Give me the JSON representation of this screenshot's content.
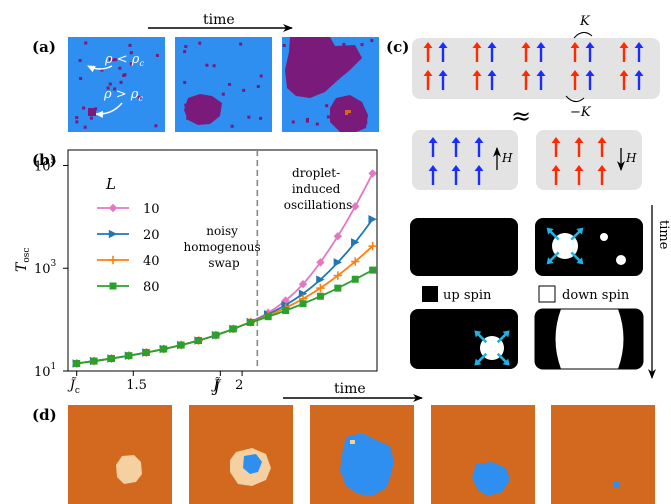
{
  "panel_labels": {
    "a": "(a)",
    "b": "(b)",
    "c": "(c)",
    "d": "(d)"
  },
  "panel_a": {
    "time_label": "time",
    "label_low": "ρ < ρ",
    "label_low_sub": "c",
    "label_high": "ρ > ρ",
    "label_high_sub": "c",
    "colors": {
      "background": "#2f8ff0",
      "cluster": "#7a1a7a",
      "speck": "#d2691e"
    }
  },
  "panel_c": {
    "label_K": "K",
    "label_negK": "−K",
    "approx": "≈",
    "label_H": "H",
    "legend_up": "up spin",
    "legend_down": "down spin",
    "time_label": "time",
    "colors": {
      "red_arrow": "#ff2a00",
      "blue_arrow": "#1a2cff",
      "box_bg": "#e3e3e3",
      "cyan_arrow": "#1fb3e3"
    }
  },
  "panel_d": {
    "time_label": "time",
    "colors": {
      "orange": "#d2691e",
      "tan": "#f5d0a0",
      "blue": "#2f8ff0"
    }
  },
  "chart_data": {
    "type": "line",
    "ylabel": "T",
    "ylabel_sub": "osc",
    "xlabel": "J̃",
    "yscale": "log",
    "xlim": [
      1.2,
      2.62
    ],
    "ylim": [
      10,
      200000
    ],
    "xtick_labels": [
      {
        "x": 1.24,
        "main": "J̃",
        "sub": "c"
      },
      {
        "x": 1.5,
        "main": "1.5",
        "sub": ""
      },
      {
        "x": 1.9,
        "main": "J̃",
        "sub": ""
      },
      {
        "x": 2.0,
        "main": "2",
        "sub": ""
      }
    ],
    "ytick_labels": [
      {
        "y": 10,
        "base": "10",
        "exp": "1"
      },
      {
        "y": 1000,
        "base": "10",
        "exp": "3"
      },
      {
        "y": 100000,
        "base": "10",
        "exp": "5"
      }
    ],
    "vline_x": 2.07,
    "legend_title": "L",
    "annotations": [
      {
        "lines": [
          "noisy",
          "homogenous",
          "swap"
        ]
      },
      {
        "lines": [
          "droplet-",
          "induced",
          "oscillations"
        ]
      }
    ],
    "series": [
      {
        "name": "10",
        "marker": "diamond",
        "color": "#e377c2",
        "x": [
          1.24,
          1.28,
          1.32,
          1.36,
          1.4,
          1.44,
          1.48,
          1.52,
          1.56,
          1.6,
          1.64,
          1.68,
          1.72,
          1.76,
          1.8,
          1.84,
          1.88,
          1.92,
          1.96,
          2.0,
          2.04,
          2.08,
          2.12,
          2.16,
          2.2,
          2.24,
          2.28,
          2.32,
          2.36,
          2.4,
          2.44,
          2.48,
          2.52,
          2.56,
          2.6
        ],
        "values": [
          14,
          14.8,
          15.6,
          16.5,
          17.5,
          18.6,
          19.9,
          21.3,
          22.9,
          24.7,
          26.8,
          29.2,
          32,
          35.3,
          39.2,
          44,
          49.8,
          57,
          66,
          77,
          91,
          110,
          136,
          175,
          235,
          330,
          490,
          780,
          1300,
          2300,
          4200,
          8000,
          16000,
          33000,
          70000
        ]
      },
      {
        "name": "20",
        "marker": "triangle",
        "color": "#1f77b4",
        "x": [
          1.24,
          1.28,
          1.32,
          1.36,
          1.4,
          1.44,
          1.48,
          1.52,
          1.56,
          1.6,
          1.64,
          1.68,
          1.72,
          1.76,
          1.8,
          1.84,
          1.88,
          1.92,
          1.96,
          2.0,
          2.04,
          2.08,
          2.12,
          2.16,
          2.2,
          2.24,
          2.28,
          2.32,
          2.36,
          2.4,
          2.44,
          2.48,
          2.52,
          2.56,
          2.6
        ],
        "values": [
          14,
          14.8,
          15.6,
          16.5,
          17.5,
          18.6,
          19.9,
          21.3,
          22.9,
          24.7,
          26.8,
          29.2,
          32,
          35.3,
          39.2,
          44,
          49.8,
          57,
          66,
          77,
          90,
          106,
          127,
          155,
          192,
          245,
          320,
          430,
          600,
          870,
          1300,
          2000,
          3200,
          5300,
          9000
        ]
      },
      {
        "name": "40",
        "marker": "plus",
        "color": "#ff7f0e",
        "x": [
          1.24,
          1.28,
          1.32,
          1.36,
          1.4,
          1.44,
          1.48,
          1.52,
          1.56,
          1.6,
          1.64,
          1.68,
          1.72,
          1.76,
          1.8,
          1.84,
          1.88,
          1.92,
          1.96,
          2.0,
          2.04,
          2.08,
          2.12,
          2.16,
          2.2,
          2.24,
          2.28,
          2.32,
          2.36,
          2.4,
          2.44,
          2.48,
          2.52,
          2.56,
          2.6
        ],
        "values": [
          14,
          14.8,
          15.6,
          16.5,
          17.5,
          18.6,
          19.9,
          21.3,
          22.9,
          24.7,
          26.8,
          29.2,
          32,
          35.3,
          39.2,
          44,
          49.8,
          57,
          66,
          77,
          89,
          103,
          120,
          142,
          170,
          206,
          255,
          320,
          410,
          540,
          720,
          980,
          1350,
          1900,
          2700
        ]
      },
      {
        "name": "80",
        "marker": "square",
        "color": "#2ca02c",
        "x": [
          1.24,
          1.28,
          1.32,
          1.36,
          1.4,
          1.44,
          1.48,
          1.52,
          1.56,
          1.6,
          1.64,
          1.68,
          1.72,
          1.76,
          1.8,
          1.84,
          1.88,
          1.92,
          1.96,
          2.0,
          2.04,
          2.08,
          2.12,
          2.16,
          2.2,
          2.24,
          2.28,
          2.32,
          2.36,
          2.4,
          2.44,
          2.48,
          2.52,
          2.56,
          2.6
        ],
        "values": [
          14,
          14.8,
          15.6,
          16.5,
          17.5,
          18.6,
          19.9,
          21.3,
          22.9,
          24.7,
          26.8,
          29.2,
          32,
          35.3,
          39.2,
          44,
          49.8,
          57,
          66,
          77,
          88,
          100,
          114,
          130,
          150,
          174,
          204,
          240,
          285,
          340,
          410,
          500,
          610,
          750,
          920
        ]
      }
    ]
  }
}
